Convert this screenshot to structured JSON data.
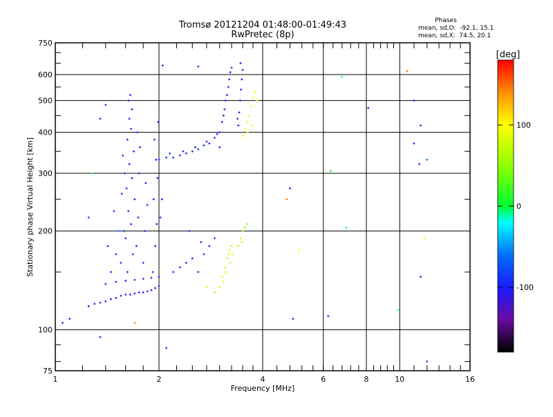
{
  "chart_data": {
    "type": "scatter",
    "title": "Tromsø 20121204 01:48:00-01:49:43",
    "subtitle": "RwPretec (8p)",
    "xlabel": "Frequency [MHz]",
    "ylabel": "Stationary phase Virtual Height [km]",
    "xscale": "log",
    "yscale": "log",
    "xlim": [
      1,
      16
    ],
    "ylim": [
      75,
      750
    ],
    "xticks": [
      1,
      2,
      4,
      6,
      8,
      10,
      16
    ],
    "xtick_labels": [
      "1",
      "2",
      "4",
      "6",
      "8",
      "10",
      "16"
    ],
    "xgrid": [
      2,
      4,
      6,
      8,
      10
    ],
    "yticks": [
      75,
      100,
      200,
      300,
      400,
      500,
      600,
      750
    ],
    "ytick_labels": [
      "75",
      "100",
      "200",
      "300",
      "400",
      "500",
      "600",
      "750"
    ],
    "ygrid": [
      100,
      200,
      300,
      400,
      500,
      600
    ],
    "stats": {
      "heading": "Phases",
      "o_line": "mean, sd,O:  -92.1, 15.1",
      "x_line": "mean, sd,X:  74.5, 20.1"
    },
    "colorbar": {
      "label": "[deg]",
      "range": [
        -180,
        180
      ],
      "ticks": [
        100,
        0,
        -100
      ],
      "tick_labels": [
        "100",
        "0",
        "-100"
      ],
      "stops": [
        [
          -180,
          "#000000"
        ],
        [
          -140,
          "#6a0aa0"
        ],
        [
          -100,
          "#1a1aff"
        ],
        [
          -60,
          "#0070ff"
        ],
        [
          -20,
          "#00ffff"
        ],
        [
          0,
          "#00ff30"
        ],
        [
          50,
          "#90ff00"
        ],
        [
          100,
          "#ffff00"
        ],
        [
          140,
          "#ff9000"
        ],
        [
          180,
          "#ff0000"
        ]
      ]
    },
    "points_fields": [
      "freq_mhz",
      "height_km",
      "phase_deg"
    ],
    "points": [
      [
        1.25,
        118,
        -100
      ],
      [
        1.3,
        120,
        -105
      ],
      [
        1.35,
        121,
        -95
      ],
      [
        1.4,
        122,
        -100
      ],
      [
        1.45,
        124,
        -110
      ],
      [
        1.5,
        125,
        -100
      ],
      [
        1.55,
        127,
        -95
      ],
      [
        1.6,
        128,
        -100
      ],
      [
        1.65,
        128,
        -105
      ],
      [
        1.7,
        129,
        -100
      ],
      [
        1.75,
        130,
        -110
      ],
      [
        1.8,
        130,
        -100
      ],
      [
        1.85,
        131,
        -95
      ],
      [
        1.9,
        132,
        -100
      ],
      [
        1.95,
        134,
        -105
      ],
      [
        2.0,
        136,
        -100
      ],
      [
        1.4,
        138,
        -100
      ],
      [
        1.5,
        140,
        -95
      ],
      [
        1.6,
        141,
        -100
      ],
      [
        1.7,
        142,
        -110
      ],
      [
        1.8,
        143,
        -100
      ],
      [
        1.9,
        144,
        -95
      ],
      [
        2.0,
        145,
        -100
      ],
      [
        1.62,
        150,
        -100
      ],
      [
        1.68,
        170,
        -105
      ],
      [
        1.6,
        190,
        -95
      ],
      [
        1.66,
        210,
        -100
      ],
      [
        1.63,
        230,
        -110
      ],
      [
        1.7,
        250,
        -100
      ],
      [
        1.61,
        270,
        -95
      ],
      [
        1.67,
        290,
        -100
      ],
      [
        1.64,
        320,
        -105
      ],
      [
        1.69,
        350,
        -100
      ],
      [
        1.62,
        380,
        -100
      ],
      [
        1.66,
        410,
        -95
      ],
      [
        1.64,
        440,
        -100
      ],
      [
        1.67,
        470,
        -110
      ],
      [
        1.63,
        500,
        -100
      ],
      [
        1.65,
        520,
        -100
      ],
      [
        1.55,
        160,
        -100
      ],
      [
        1.58,
        200,
        -90
      ],
      [
        1.72,
        180,
        -100
      ],
      [
        1.74,
        220,
        -100
      ],
      [
        1.56,
        260,
        -110
      ],
      [
        1.75,
        300,
        -100
      ],
      [
        1.57,
        340,
        -95
      ],
      [
        1.73,
        400,
        -100
      ],
      [
        1.76,
        360,
        -100
      ],
      [
        1.59,
        300,
        -100
      ],
      [
        1.45,
        150,
        -100
      ],
      [
        1.5,
        170,
        -100
      ],
      [
        1.52,
        200,
        -60
      ],
      [
        1.48,
        230,
        -100
      ],
      [
        1.42,
        180,
        -110
      ],
      [
        1.8,
        160,
        -100
      ],
      [
        1.82,
        200,
        -95
      ],
      [
        1.85,
        240,
        -100
      ],
      [
        1.83,
        280,
        -100
      ],
      [
        1.92,
        150,
        -100
      ],
      [
        1.95,
        180,
        -100
      ],
      [
        1.97,
        210,
        -100
      ],
      [
        1.93,
        250,
        -105
      ],
      [
        1.98,
        290,
        -100
      ],
      [
        1.96,
        330,
        -100
      ],
      [
        1.94,
        380,
        -95
      ],
      [
        1.99,
        430,
        -100
      ],
      [
        2.02,
        220,
        -90
      ],
      [
        2.04,
        250,
        -100
      ],
      [
        2.0,
        330,
        -100
      ],
      [
        2.1,
        335,
        -100
      ],
      [
        2.2,
        335,
        -95
      ],
      [
        2.3,
        340,
        -100
      ],
      [
        2.4,
        345,
        -100
      ],
      [
        2.5,
        350,
        -105
      ],
      [
        2.6,
        355,
        -100
      ],
      [
        2.7,
        365,
        -100
      ],
      [
        2.8,
        370,
        -95
      ],
      [
        2.9,
        385,
        -110
      ],
      [
        3.0,
        400,
        -100
      ],
      [
        3.05,
        430,
        -100
      ],
      [
        3.1,
        470,
        -95
      ],
      [
        3.15,
        520,
        -100
      ],
      [
        3.2,
        580,
        -100
      ],
      [
        3.25,
        630,
        -105
      ],
      [
        2.15,
        345,
        -100
      ],
      [
        2.35,
        350,
        -100
      ],
      [
        2.55,
        360,
        -100
      ],
      [
        2.75,
        375,
        -120
      ],
      [
        2.95,
        395,
        -100
      ],
      [
        3.08,
        450,
        -140
      ],
      [
        3.12,
        500,
        -100
      ],
      [
        3.18,
        550,
        -100
      ],
      [
        3.22,
        610,
        -100
      ],
      [
        3.0,
        360,
        -100
      ],
      [
        3.4,
        420,
        -100
      ],
      [
        3.42,
        460,
        -120
      ],
      [
        3.44,
        500,
        -100
      ],
      [
        3.46,
        540,
        -100
      ],
      [
        3.48,
        580,
        -110
      ],
      [
        3.5,
        620,
        -100
      ],
      [
        3.45,
        650,
        -100
      ],
      [
        3.38,
        440,
        -140
      ],
      [
        2.2,
        150,
        -100
      ],
      [
        2.3,
        155,
        -100
      ],
      [
        2.4,
        160,
        -95
      ],
      [
        2.5,
        165,
        -100
      ],
      [
        2.6,
        150,
        -100
      ],
      [
        2.7,
        170,
        -100
      ],
      [
        2.8,
        180,
        -100
      ],
      [
        2.9,
        190,
        -100
      ],
      [
        2.45,
        200,
        -100
      ],
      [
        2.65,
        185,
        -105
      ],
      [
        3.0,
        135,
        80
      ],
      [
        3.05,
        145,
        85
      ],
      [
        3.1,
        155,
        80
      ],
      [
        3.15,
        165,
        75
      ],
      [
        3.2,
        175,
        80
      ],
      [
        3.25,
        180,
        70
      ],
      [
        3.08,
        140,
        90
      ],
      [
        3.12,
        150,
        80
      ],
      [
        3.18,
        170,
        85
      ],
      [
        3.22,
        160,
        75
      ],
      [
        3.28,
        170,
        80
      ],
      [
        2.9,
        130,
        60
      ],
      [
        2.75,
        135,
        70
      ],
      [
        3.4,
        180,
        60
      ],
      [
        3.45,
        190,
        65
      ],
      [
        3.5,
        200,
        60
      ],
      [
        3.55,
        205,
        55
      ],
      [
        3.6,
        210,
        60
      ],
      [
        3.48,
        185,
        70
      ],
      [
        3.5,
        390,
        100
      ],
      [
        3.55,
        410,
        95
      ],
      [
        3.6,
        430,
        100
      ],
      [
        3.65,
        450,
        105
      ],
      [
        3.7,
        480,
        100
      ],
      [
        3.75,
        510,
        95
      ],
      [
        3.8,
        530,
        100
      ],
      [
        3.62,
        400,
        90
      ],
      [
        3.72,
        420,
        100
      ],
      [
        3.85,
        500,
        95
      ],
      [
        1.05,
        105,
        -110
      ],
      [
        1.1,
        108,
        -100
      ],
      [
        1.35,
        95,
        -100
      ],
      [
        4.7,
        250,
        150
      ],
      [
        6.2,
        110,
        -120
      ],
      [
        8.1,
        475,
        -100
      ],
      [
        10.5,
        615,
        150
      ],
      [
        11,
        500,
        -110
      ],
      [
        11.5,
        420,
        -100
      ],
      [
        11,
        370,
        -100
      ],
      [
        12,
        80,
        -80
      ],
      [
        9.9,
        115,
        -20
      ],
      [
        11.5,
        145,
        -110
      ],
      [
        11.4,
        320,
        -100
      ],
      [
        12,
        330,
        -60
      ],
      [
        6.8,
        590,
        -20
      ],
      [
        6.3,
        305,
        0
      ],
      [
        7,
        205,
        -10
      ],
      [
        5.1,
        175,
        100
      ],
      [
        4.9,
        108,
        -100
      ],
      [
        2.05,
        640,
        -110
      ],
      [
        2.6,
        635,
        -110
      ],
      [
        1.4,
        485,
        -120
      ],
      [
        1.35,
        440,
        -100
      ],
      [
        1.25,
        220,
        -80
      ],
      [
        1.28,
        300,
        0
      ],
      [
        4.8,
        270,
        -100
      ],
      [
        2.1,
        88,
        -100
      ],
      [
        1.7,
        105,
        140
      ],
      [
        11.8,
        190,
        100
      ]
    ]
  }
}
